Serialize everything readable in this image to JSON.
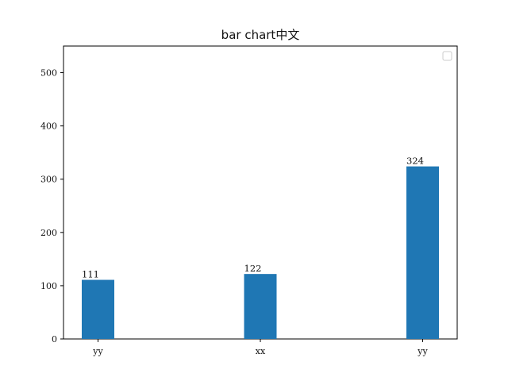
{
  "chart_data": {
    "type": "bar",
    "title": "bar chart中文",
    "xlabel": "",
    "ylabel": "",
    "categories": [
      "yy",
      "xx",
      "yy"
    ],
    "values": [
      111,
      122,
      324
    ],
    "ylim": [
      0,
      550
    ],
    "yticks": [
      0,
      100,
      200,
      300,
      400,
      500
    ],
    "grid": false,
    "legend": {
      "placement": "top-right",
      "entries": []
    },
    "bar_color": "#1f77b4",
    "data_labels": [
      "111",
      "122",
      "324"
    ]
  }
}
